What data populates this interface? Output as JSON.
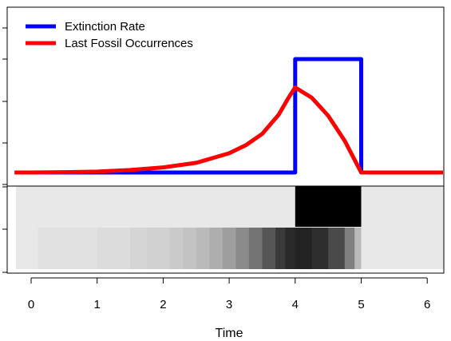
{
  "chart_data": {
    "type": "line",
    "xlabel": "Time",
    "xlim": [
      -0.25,
      6.25
    ],
    "x_ticks": [
      0,
      1,
      2,
      3,
      4,
      5,
      6
    ],
    "x_tick_labels": [
      "0",
      "1",
      "2",
      "3",
      "4",
      "5",
      "6"
    ],
    "ylim": [
      0,
      1
    ],
    "legend_position": "top-left",
    "series": [
      {
        "name": "Extinction Rate",
        "color": "#0000FF",
        "x": [
          -0.25,
          4.0,
          4.0,
          5.0,
          5.0,
          6.25
        ],
        "y": [
          0.0,
          0.0,
          1.0,
          1.0,
          0.0,
          0.0
        ]
      },
      {
        "name": "Last Fossil Occurrences",
        "color": "#FF0000",
        "x": [
          -0.25,
          0.0,
          0.5,
          1.0,
          1.5,
          2.0,
          2.5,
          3.0,
          3.25,
          3.5,
          3.75,
          3.9,
          4.0,
          4.25,
          4.5,
          4.75,
          5.0,
          6.25
        ],
        "y": [
          0.0,
          0.0,
          0.003,
          0.008,
          0.022,
          0.045,
          0.085,
          0.17,
          0.24,
          0.34,
          0.51,
          0.66,
          0.75,
          0.66,
          0.5,
          0.28,
          0.0,
          0.0
        ]
      }
    ],
    "heatmap": {
      "rows": [
        {
          "x": [
            -0.25,
            4.0,
            5.0
          ],
          "values": [
            0.0,
            1.0,
            0.0
          ]
        },
        {
          "x": [
            0.1,
            0.5,
            1.0,
            1.5,
            1.75,
            2.1,
            2.3,
            2.5,
            2.7,
            2.9,
            3.1,
            3.3,
            3.5,
            3.7,
            3.85,
            4.0,
            4.25,
            4.5,
            4.75,
            4.9,
            5.0
          ],
          "values": [
            0.03,
            0.03,
            0.05,
            0.08,
            0.1,
            0.13,
            0.16,
            0.2,
            0.25,
            0.32,
            0.4,
            0.5,
            0.63,
            0.75,
            0.82,
            0.85,
            0.8,
            0.68,
            0.45,
            0.2,
            0.0
          ]
        }
      ]
    }
  }
}
